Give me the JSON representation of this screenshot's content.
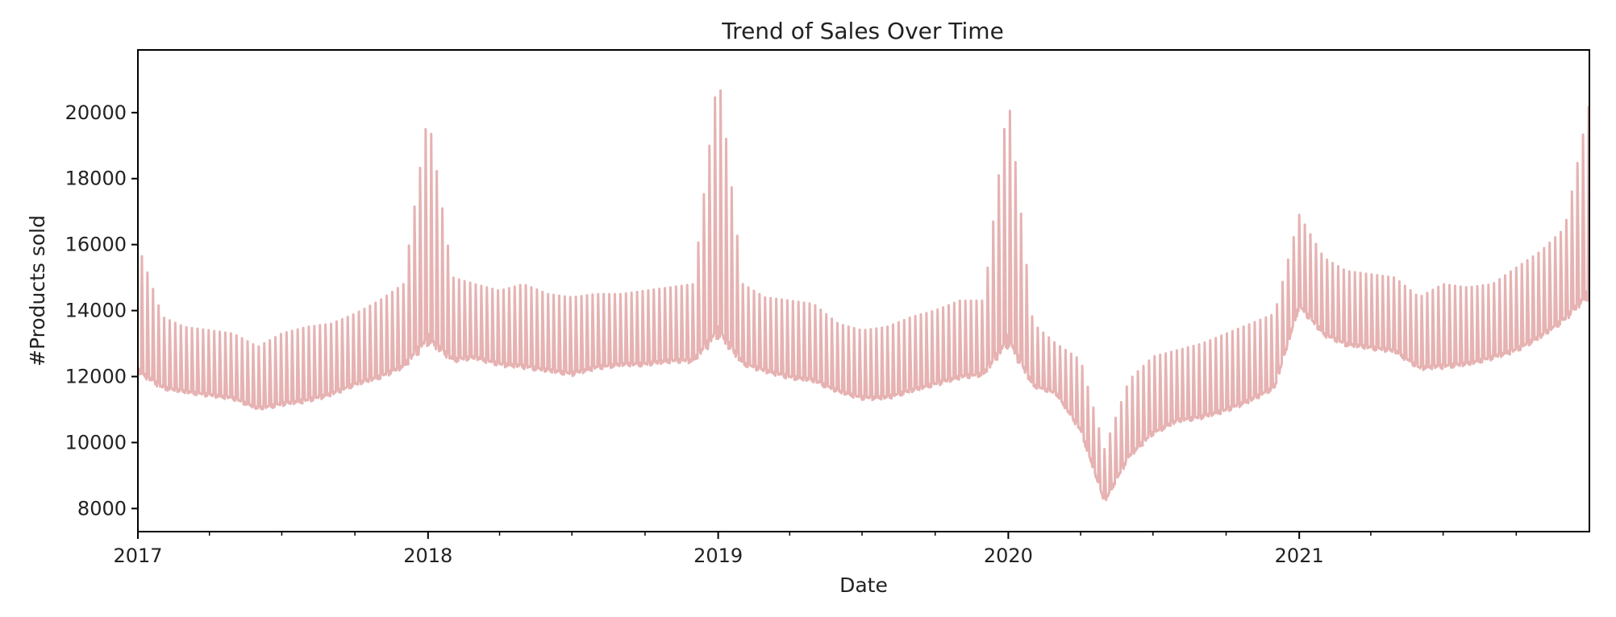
{
  "chart_data": {
    "type": "line",
    "title": "Trend of Sales Over Time",
    "xlabel": "Date",
    "ylabel": "#Products sold",
    "x_ticks": [
      "2017",
      "2018",
      "2019",
      "2020",
      "2021"
    ],
    "y_ticks": [
      8000,
      10000,
      12000,
      14000,
      16000,
      18000,
      20000
    ],
    "xlim": [
      "2017-01-01",
      "2022-01-01"
    ],
    "ylim": [
      7300,
      21900
    ],
    "grid": false,
    "legend": "none",
    "line_color": "#e6b2b2",
    "series": [
      {
        "x": [
          "2017-01-01",
          "2017-02-01",
          "2017-03-01",
          "2017-04-01",
          "2017-05-01",
          "2017-06-01",
          "2017-07-01",
          "2017-08-01",
          "2017-09-01",
          "2017-10-01",
          "2017-11-01",
          "2017-12-01",
          "2018-01-01",
          "2018-02-01",
          "2018-03-01",
          "2018-04-01",
          "2018-05-01",
          "2018-06-01",
          "2018-07-01",
          "2018-08-01",
          "2018-09-01",
          "2018-10-01",
          "2018-11-01",
          "2018-12-01",
          "2019-01-01",
          "2019-02-01",
          "2019-03-01",
          "2019-04-01",
          "2019-05-01",
          "2019-06-01",
          "2019-07-01",
          "2019-08-01",
          "2019-09-01",
          "2019-10-01",
          "2019-11-01",
          "2019-12-01",
          "2020-01-01",
          "2020-02-01",
          "2020-03-01",
          "2020-04-01",
          "2020-05-01",
          "2020-06-01",
          "2020-07-01",
          "2020-08-01",
          "2020-09-01",
          "2020-10-01",
          "2020-11-01",
          "2020-12-01",
          "2021-01-01",
          "2021-02-01",
          "2021-03-01",
          "2021-04-01",
          "2021-05-01",
          "2021-06-01",
          "2021-07-01",
          "2021-08-01",
          "2021-09-01",
          "2021-10-01",
          "2021-11-01",
          "2021-12-01",
          "2021-12-31"
        ],
        "low": [
          11700,
          11400,
          11300,
          11200,
          11100,
          10800,
          10900,
          11000,
          11200,
          11500,
          11700,
          12000,
          12300,
          12200,
          12300,
          12100,
          12000,
          11900,
          11800,
          12000,
          12100,
          12100,
          12200,
          12200,
          12400,
          12100,
          11900,
          11700,
          11600,
          11300,
          11100,
          11100,
          11300,
          11500,
          11700,
          11800,
          12200,
          11500,
          11300,
          10100,
          8000,
          9300,
          10000,
          10400,
          10500,
          10700,
          11000,
          11400,
          13800,
          13000,
          12700,
          12600,
          12500,
          12000,
          12000,
          12100,
          12300,
          12500,
          12900,
          13400,
          13800
        ],
        "high": [
          16000,
          13800,
          13500,
          13400,
          13300,
          12900,
          13300,
          13500,
          13600,
          13900,
          14300,
          14800,
          20000,
          15000,
          14800,
          14600,
          14800,
          14500,
          14400,
          14500,
          14500,
          14600,
          14700,
          14800,
          21300,
          14800,
          14400,
          14300,
          14200,
          13600,
          13400,
          13500,
          13800,
          14000,
          14300,
          14300,
          20500,
          13600,
          13000,
          12500,
          9800,
          11900,
          12600,
          12800,
          13000,
          13300,
          13600,
          13900,
          16900,
          15600,
          15200,
          15100,
          15000,
          14400,
          14800,
          14700,
          14800,
          15300,
          15800,
          16500,
          20200
        ]
      }
    ]
  }
}
